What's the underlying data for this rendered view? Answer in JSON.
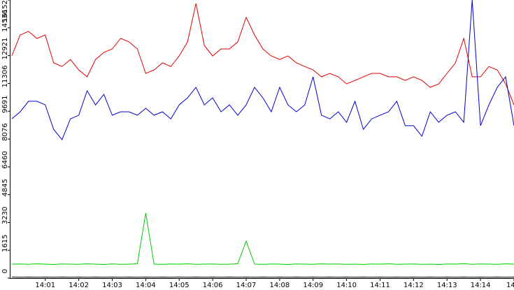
{
  "chart_data": {
    "type": "line",
    "x": [
      0,
      0.25,
      0.5,
      0.75,
      1,
      1.25,
      1.5,
      1.75,
      2,
      2.25,
      2.5,
      2.75,
      3,
      3.25,
      3.5,
      3.75,
      4,
      4.25,
      4.5,
      4.75,
      5,
      5.25,
      5.5,
      5.75,
      6,
      6.25,
      6.5,
      6.75,
      7,
      7.25,
      7.5,
      7.75,
      8,
      8.25,
      8.5,
      8.75,
      9,
      9.25,
      9.5,
      9.75,
      10,
      10.25,
      10.5,
      10.75,
      11,
      11.25,
      11.5,
      11.75,
      12,
      12.25,
      12.5,
      12.75,
      13,
      13.25,
      13.5,
      13.75,
      14,
      14.25,
      14.5,
      14.75,
      15
    ],
    "series": [
      {
        "color": "#e00000",
        "values": [
          12900,
          14120,
          14330,
          13920,
          14120,
          12500,
          12290,
          12700,
          12090,
          11690,
          12700,
          13110,
          13310,
          13920,
          13720,
          13310,
          11890,
          12090,
          12500,
          12290,
          12900,
          13720,
          15950,
          13510,
          12900,
          13310,
          13310,
          13720,
          15140,
          14120,
          13310,
          12900,
          12700,
          12900,
          12500,
          12290,
          12090,
          11690,
          11890,
          11690,
          11280,
          11480,
          11690,
          11890,
          11890,
          11690,
          11690,
          11480,
          11690,
          11480,
          11080,
          11280,
          11890,
          12500,
          13920,
          11690,
          11690,
          12290,
          12090,
          11280,
          10060
        ]
      },
      {
        "color": "#0000cc",
        "values": [
          9250,
          9660,
          10270,
          10270,
          10060,
          8640,
          8040,
          9250,
          9460,
          10880,
          10060,
          10670,
          9460,
          9660,
          9660,
          9460,
          9860,
          9460,
          9660,
          9250,
          10060,
          10470,
          11080,
          10060,
          10470,
          9660,
          10060,
          9460,
          10060,
          11080,
          10470,
          9660,
          11080,
          10060,
          9660,
          10060,
          11690,
          9460,
          9250,
          9660,
          9050,
          10270,
          8640,
          9250,
          9460,
          9660,
          10270,
          8850,
          8850,
          8240,
          9660,
          9050,
          9460,
          9660,
          9050,
          16150,
          8850,
          10060,
          11080,
          11690,
          8850
        ]
      },
      {
        "color": "#00cc00",
        "values": [
          810,
          820,
          800,
          830,
          810,
          790,
          820,
          810,
          800,
          830,
          810,
          790,
          820,
          800,
          810,
          830,
          3770,
          810,
          800,
          820,
          810,
          830,
          800,
          810,
          820,
          800,
          810,
          830,
          2150,
          810,
          800,
          820,
          810,
          790,
          820,
          810,
          800,
          830,
          810,
          820,
          800,
          810,
          790,
          820,
          810,
          830,
          800,
          810,
          820,
          800,
          810,
          790,
          820,
          810,
          840,
          800,
          820,
          810,
          800,
          830,
          810
        ]
      },
      {
        "color": "#000000",
        "values": [
          60,
          50,
          60,
          50,
          60,
          50,
          60,
          50,
          60,
          50,
          60,
          50,
          60,
          50,
          60,
          50,
          60,
          50,
          60,
          50,
          60,
          50,
          60,
          50,
          60,
          50,
          60,
          50,
          60,
          50,
          60,
          50,
          60,
          50,
          60,
          50,
          60,
          50,
          60,
          50,
          60,
          50,
          60,
          50,
          60,
          50,
          60,
          50,
          60,
          50,
          60,
          50,
          60,
          50,
          60,
          50,
          60,
          50,
          60,
          50,
          60
        ]
      }
    ],
    "xlim": [
      -0.06,
      15
    ],
    "xticks": [
      {
        "value": 1,
        "label": "14:01"
      },
      {
        "value": 2,
        "label": "14:02"
      },
      {
        "value": 3,
        "label": "14:03"
      },
      {
        "value": 4,
        "label": "14:04"
      },
      {
        "value": 5,
        "label": "14:05"
      },
      {
        "value": 6,
        "label": "14:06"
      },
      {
        "value": 7,
        "label": "14:07"
      },
      {
        "value": 8,
        "label": "14:08"
      },
      {
        "value": 9,
        "label": "14:09"
      },
      {
        "value": 10,
        "label": "14:10"
      },
      {
        "value": 11,
        "label": "14:11"
      },
      {
        "value": 12,
        "label": "14:12"
      },
      {
        "value": 13,
        "label": "14:13"
      },
      {
        "value": 14,
        "label": "14:14"
      },
      {
        "value": 15,
        "label": "14"
      }
    ],
    "ylim": [
      0,
      16152
    ],
    "yticks": [
      0,
      1615,
      3230,
      4845,
      6460,
      8076,
      9691,
      11306,
      12921,
      14536,
      16152
    ]
  }
}
